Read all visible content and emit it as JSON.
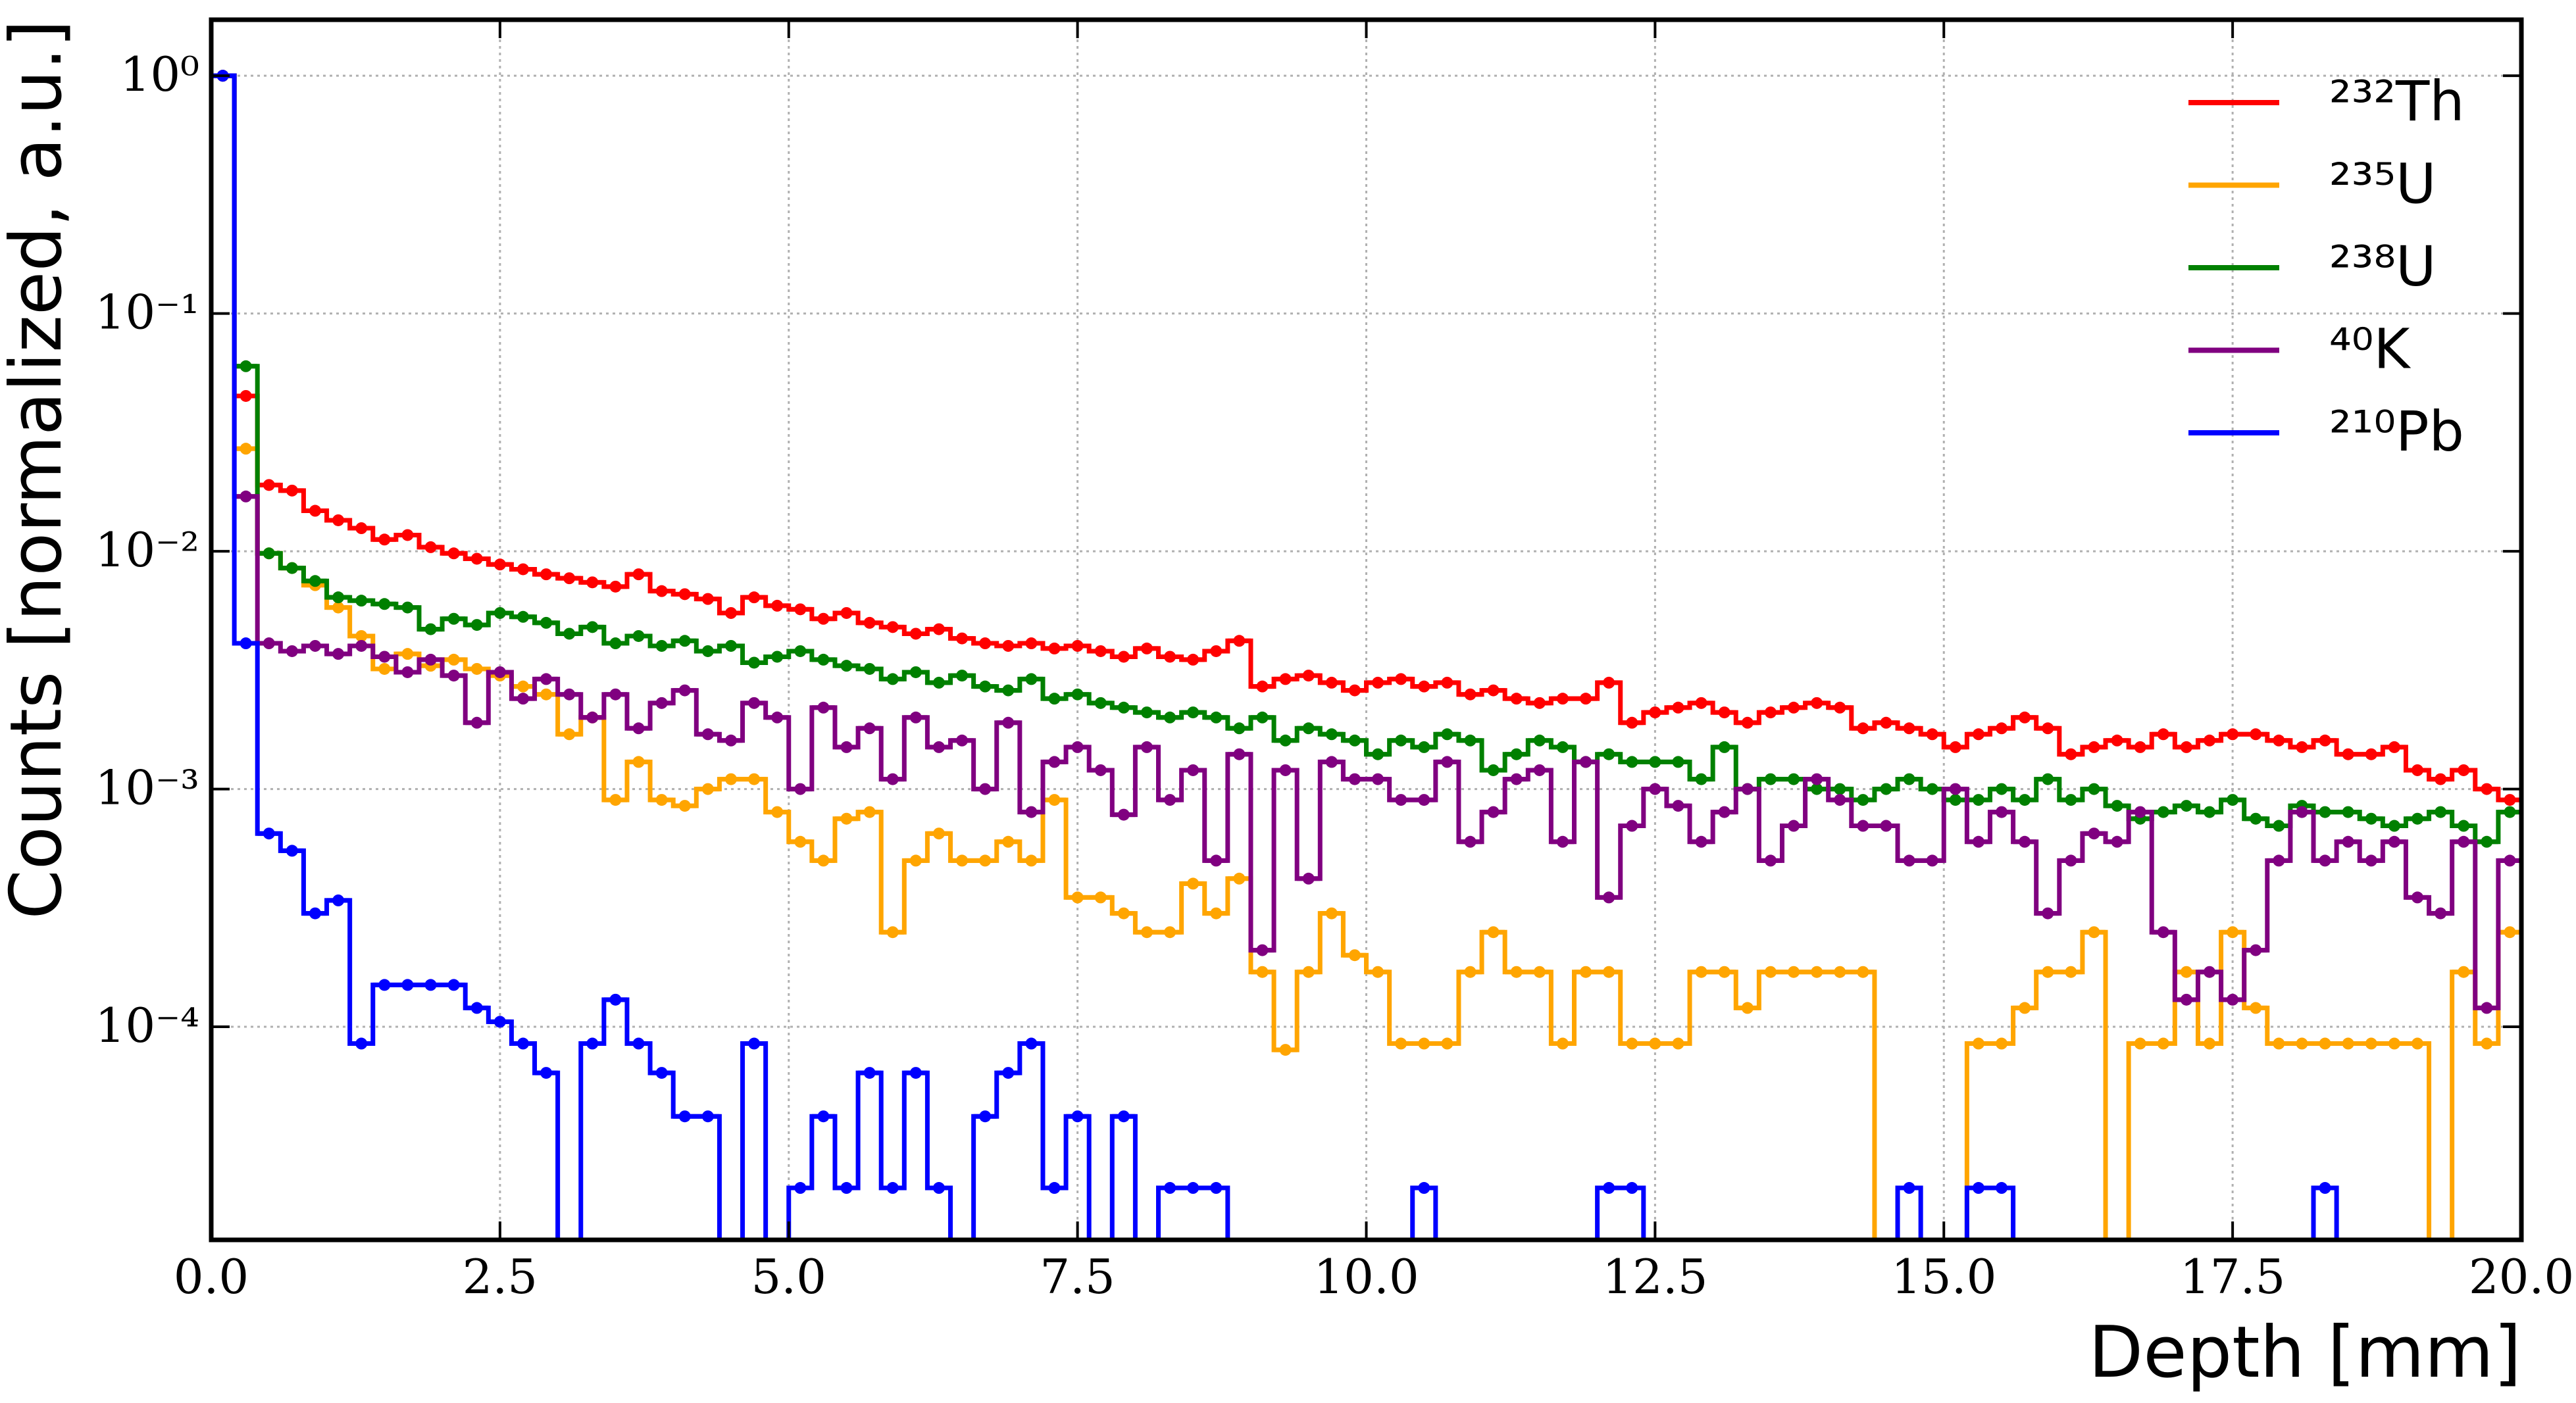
{
  "chart_data": {
    "type": "histogram",
    "xlabel": "Depth [mm]",
    "ylabel": "Counts [normalized, a.u.]",
    "log_y": true,
    "grid": true,
    "legend": "upper right",
    "xlim": [
      0,
      20
    ],
    "ylim": [
      1.27e-05,
      1.72
    ],
    "xticks": [
      {
        "value": 0,
        "label": "0.0"
      },
      2.5,
      {
        "value": 5,
        "label": "5.0"
      },
      7.5,
      {
        "value": 10,
        "label": "10.0"
      },
      12.5,
      {
        "value": 15,
        "label": "15.0"
      },
      17.5,
      {
        "value": 20,
        "label": "20.0"
      }
    ],
    "yticks": [
      {
        "value": 1,
        "label": "10⁰"
      },
      {
        "value": 0.1,
        "label": "10⁻¹"
      },
      {
        "value": 0.01,
        "label": "10⁻²"
      },
      {
        "value": 0.001,
        "label": "10⁻³"
      },
      {
        "value": 0.0001,
        "label": "10⁻⁴"
      }
    ],
    "bins": [
      0,
      0.2,
      0.4,
      0.6,
      0.8,
      1,
      1.2,
      1.4,
      1.6,
      1.8,
      2,
      2.2,
      2.4,
      2.6,
      2.8,
      3,
      3.2,
      3.4,
      3.6,
      3.8,
      4,
      4.2,
      4.4,
      4.6,
      4.8,
      5,
      5.2,
      5.4,
      5.6,
      5.8,
      6,
      6.2,
      6.4,
      6.6,
      6.8,
      7,
      7.2,
      7.4,
      7.6,
      7.8,
      8,
      8.2,
      8.4,
      8.6,
      8.8,
      9,
      9.2,
      9.4,
      9.6,
      9.8,
      10,
      10.2,
      10.4,
      10.6,
      10.8,
      11,
      11.2,
      11.4,
      11.6,
      11.8,
      12,
      12.2,
      12.4,
      12.6,
      12.8,
      13,
      13.2,
      13.4,
      13.6,
      13.8,
      14,
      14.2,
      14.4,
      14.6,
      14.8,
      15,
      15.2,
      15.4,
      15.6,
      15.8,
      16,
      16.2,
      16.4,
      16.6,
      16.8,
      17,
      17.2,
      17.4,
      17.6,
      17.8,
      18,
      18.2,
      18.4,
      18.6,
      18.8,
      19,
      19.2,
      19.4,
      19.6,
      19.8,
      20
    ],
    "series": [
      {
        "name": "²³²Th",
        "color": "#ff0000",
        "values": [
          1.0,
          0.045,
          0.019,
          0.018,
          0.0148,
          0.0135,
          0.0125,
          0.0112,
          0.0117,
          0.0104,
          0.0098,
          0.0093,
          0.0088,
          0.0084,
          0.008,
          0.0077,
          0.0074,
          0.0071,
          0.008,
          0.0068,
          0.0066,
          0.0063,
          0.0055,
          0.0064,
          0.0059,
          0.0057,
          0.0052,
          0.0055,
          0.005,
          0.0048,
          0.0045,
          0.0047,
          0.0043,
          0.0041,
          0.004,
          0.0041,
          0.0039,
          0.004,
          0.0038,
          0.0036,
          0.0039,
          0.0036,
          0.0035,
          0.0038,
          0.0042,
          0.0027,
          0.0029,
          0.003,
          0.0028,
          0.0026,
          0.0028,
          0.0029,
          0.0027,
          0.0028,
          0.0025,
          0.0026,
          0.0024,
          0.0023,
          0.0024,
          0.0024,
          0.0028,
          0.0019,
          0.0021,
          0.0022,
          0.0023,
          0.0021,
          0.0019,
          0.0021,
          0.0022,
          0.0023,
          0.0022,
          0.0018,
          0.0019,
          0.0018,
          0.0017,
          0.0015,
          0.0017,
          0.0018,
          0.002,
          0.0018,
          0.0014,
          0.0015,
          0.0016,
          0.0015,
          0.0017,
          0.0015,
          0.0016,
          0.0017,
          0.0017,
          0.0016,
          0.0015,
          0.0016,
          0.0014,
          0.0014,
          0.0015,
          0.0012,
          0.0011,
          0.0012,
          0.001,
          0.0009
        ]
      },
      {
        "name": "²³⁵U",
        "color": "#ffa500",
        "values": [
          1.0,
          0.027,
          0.0098,
          0.0085,
          0.0072,
          0.0058,
          0.0044,
          0.0032,
          0.0037,
          0.0033,
          0.0035,
          0.0032,
          0.003,
          0.0027,
          0.0025,
          0.0017,
          0.002,
          0.0009,
          0.0013,
          0.0009,
          0.00085,
          0.001,
          0.0011,
          0.0011,
          0.0008,
          0.0006,
          0.0005,
          0.00075,
          0.0008,
          0.00025,
          0.0005,
          0.00065,
          0.0005,
          0.0005,
          0.0006,
          0.0005,
          0.0009,
          0.00035,
          0.00035,
          0.0003,
          0.00025,
          0.00025,
          0.0004,
          0.0003,
          0.00042,
          0.00017,
          8e-05,
          0.00017,
          0.0003,
          0.0002,
          0.00017,
          8.5e-05,
          8.5e-05,
          8.5e-05,
          0.00017,
          0.00025,
          0.00017,
          0.00017,
          8.5e-05,
          0.00017,
          0.00017,
          8.5e-05,
          8.5e-05,
          8.5e-05,
          0.00017,
          0.00017,
          0.00012,
          0.00017,
          0.00017,
          0.00017,
          0.00017,
          0.00017,
          0,
          0,
          0,
          0,
          8.5e-05,
          8.5e-05,
          0.00012,
          0.00017,
          0.00017,
          0.00025,
          0,
          8.5e-05,
          8.5e-05,
          0.00017,
          8.5e-05,
          0.00025,
          0.00012,
          8.5e-05,
          8.5e-05,
          8.5e-05,
          8.5e-05,
          8.5e-05,
          8.5e-05,
          8.5e-05,
          0,
          0.00017,
          8.5e-05,
          0.00025
        ]
      },
      {
        "name": "²³⁸U",
        "color": "#008000",
        "values": [
          1.0,
          0.06,
          0.0098,
          0.0085,
          0.0075,
          0.0064,
          0.0062,
          0.006,
          0.0058,
          0.0047,
          0.0052,
          0.0049,
          0.0055,
          0.0053,
          0.005,
          0.0045,
          0.0048,
          0.0041,
          0.0044,
          0.004,
          0.0042,
          0.0038,
          0.004,
          0.0034,
          0.0036,
          0.0038,
          0.0035,
          0.0033,
          0.0032,
          0.0029,
          0.0031,
          0.0028,
          0.003,
          0.0027,
          0.0026,
          0.0029,
          0.0024,
          0.0025,
          0.0023,
          0.0022,
          0.0021,
          0.002,
          0.0021,
          0.002,
          0.0018,
          0.002,
          0.0016,
          0.0018,
          0.0017,
          0.0016,
          0.0014,
          0.0016,
          0.0015,
          0.0017,
          0.0016,
          0.0012,
          0.0014,
          0.0016,
          0.0015,
          0.0013,
          0.0014,
          0.0013,
          0.0013,
          0.0013,
          0.0011,
          0.0015,
          0.001,
          0.0011,
          0.0011,
          0.001,
          0.001,
          0.0009,
          0.001,
          0.0011,
          0.001,
          0.0009,
          0.0009,
          0.001,
          0.0009,
          0.0011,
          0.0009,
          0.001,
          0.00085,
          0.00075,
          0.0008,
          0.00085,
          0.0008,
          0.0009,
          0.00075,
          0.0007,
          0.00085,
          0.0008,
          0.0008,
          0.00075,
          0.0007,
          0.00075,
          0.0008,
          0.0007,
          0.0006,
          0.0008
        ]
      },
      {
        "name": "⁴⁰K",
        "color": "#800080",
        "values": [
          1.0,
          0.017,
          0.0041,
          0.0038,
          0.004,
          0.0037,
          0.004,
          0.0036,
          0.0031,
          0.0035,
          0.003,
          0.0019,
          0.0031,
          0.0024,
          0.0029,
          0.0025,
          0.002,
          0.0025,
          0.0018,
          0.0023,
          0.0026,
          0.0017,
          0.0016,
          0.0023,
          0.002,
          0.001,
          0.0022,
          0.0015,
          0.0018,
          0.0011,
          0.002,
          0.0015,
          0.0016,
          0.001,
          0.0019,
          0.0008,
          0.0013,
          0.0015,
          0.0012,
          0.00078,
          0.0015,
          0.0009,
          0.0012,
          0.0005,
          0.0014,
          0.00021,
          0.0012,
          0.00042,
          0.0013,
          0.0011,
          0.0011,
          0.0009,
          0.0009,
          0.0013,
          0.0006,
          0.0008,
          0.0011,
          0.0012,
          0.0006,
          0.0013,
          0.00035,
          0.0007,
          0.001,
          0.00085,
          0.0006,
          0.0008,
          0.001,
          0.0005,
          0.0007,
          0.0011,
          0.0009,
          0.0007,
          0.0007,
          0.0005,
          0.0005,
          0.001,
          0.0006,
          0.0008,
          0.0006,
          0.0003,
          0.0005,
          0.00065,
          0.0006,
          0.0008,
          0.00025,
          0.00013,
          0.00017,
          0.00013,
          0.00021,
          0.0005,
          0.0008,
          0.0005,
          0.0006,
          0.0005,
          0.0006,
          0.00035,
          0.0003,
          0.0006,
          0.00012,
          0.0005
        ]
      },
      {
        "name": "²¹⁰Pb",
        "color": "#0000ff",
        "values": [
          1.0,
          0.0041,
          0.00065,
          0.00055,
          0.0003,
          0.00034,
          8.5e-05,
          0.00015,
          0.00015,
          0.00015,
          0.00015,
          0.00012,
          0.000105,
          8.5e-05,
          6.4e-05,
          0,
          8.5e-05,
          0.00013,
          8.5e-05,
          6.4e-05,
          4.2e-05,
          4.2e-05,
          0,
          8.5e-05,
          0,
          2.1e-05,
          4.2e-05,
          2.1e-05,
          6.4e-05,
          2.1e-05,
          6.4e-05,
          2.1e-05,
          0,
          4.2e-05,
          6.4e-05,
          8.5e-05,
          2.1e-05,
          4.2e-05,
          0,
          4.2e-05,
          0,
          2.1e-05,
          2.1e-05,
          2.1e-05,
          0,
          0,
          0,
          0,
          0,
          0,
          0,
          0,
          2.1e-05,
          0,
          0,
          0,
          0,
          0,
          0,
          0,
          2.1e-05,
          2.1e-05,
          0,
          0,
          0,
          0,
          0,
          0,
          0,
          0,
          0,
          0,
          0,
          2.1e-05,
          0,
          0,
          2.1e-05,
          2.1e-05,
          0,
          0,
          0,
          0,
          0,
          0,
          0,
          0,
          0,
          0,
          0,
          0,
          0,
          2.1e-05,
          0,
          0,
          0,
          0,
          0,
          0,
          0,
          0
        ]
      }
    ]
  }
}
